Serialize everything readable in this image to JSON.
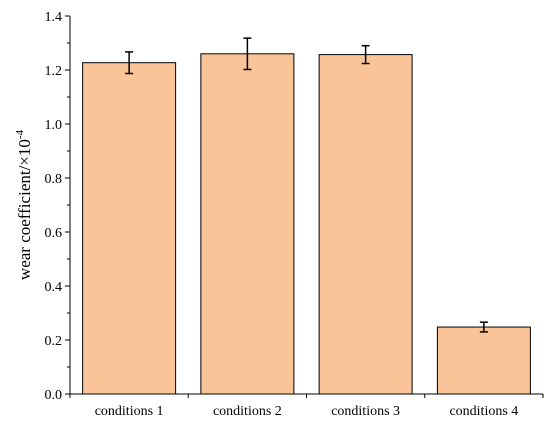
{
  "chart_data": {
    "type": "bar",
    "categories": [
      "conditions 1",
      "conditions 2",
      "conditions 3",
      "conditions 4"
    ],
    "values": [
      1.227,
      1.26,
      1.257,
      0.248
    ],
    "errors": [
      0.04,
      0.058,
      0.033,
      0.018
    ],
    "ylabel": "wear coefficient/×10",
    "ylabel_exponent": "-4",
    "xlabel": "",
    "ylim": [
      0,
      1.4
    ],
    "yticks": [
      0.0,
      0.2,
      0.4,
      0.6,
      0.8,
      1.0,
      1.2,
      1.4
    ],
    "ytick_labels": [
      "0.0",
      "0.2",
      "0.4",
      "0.6",
      "0.8",
      "1.0",
      "1.2",
      "1.4"
    ],
    "grid": false,
    "bar_color": "#f9c598",
    "bar_edge_color": "#000000"
  }
}
